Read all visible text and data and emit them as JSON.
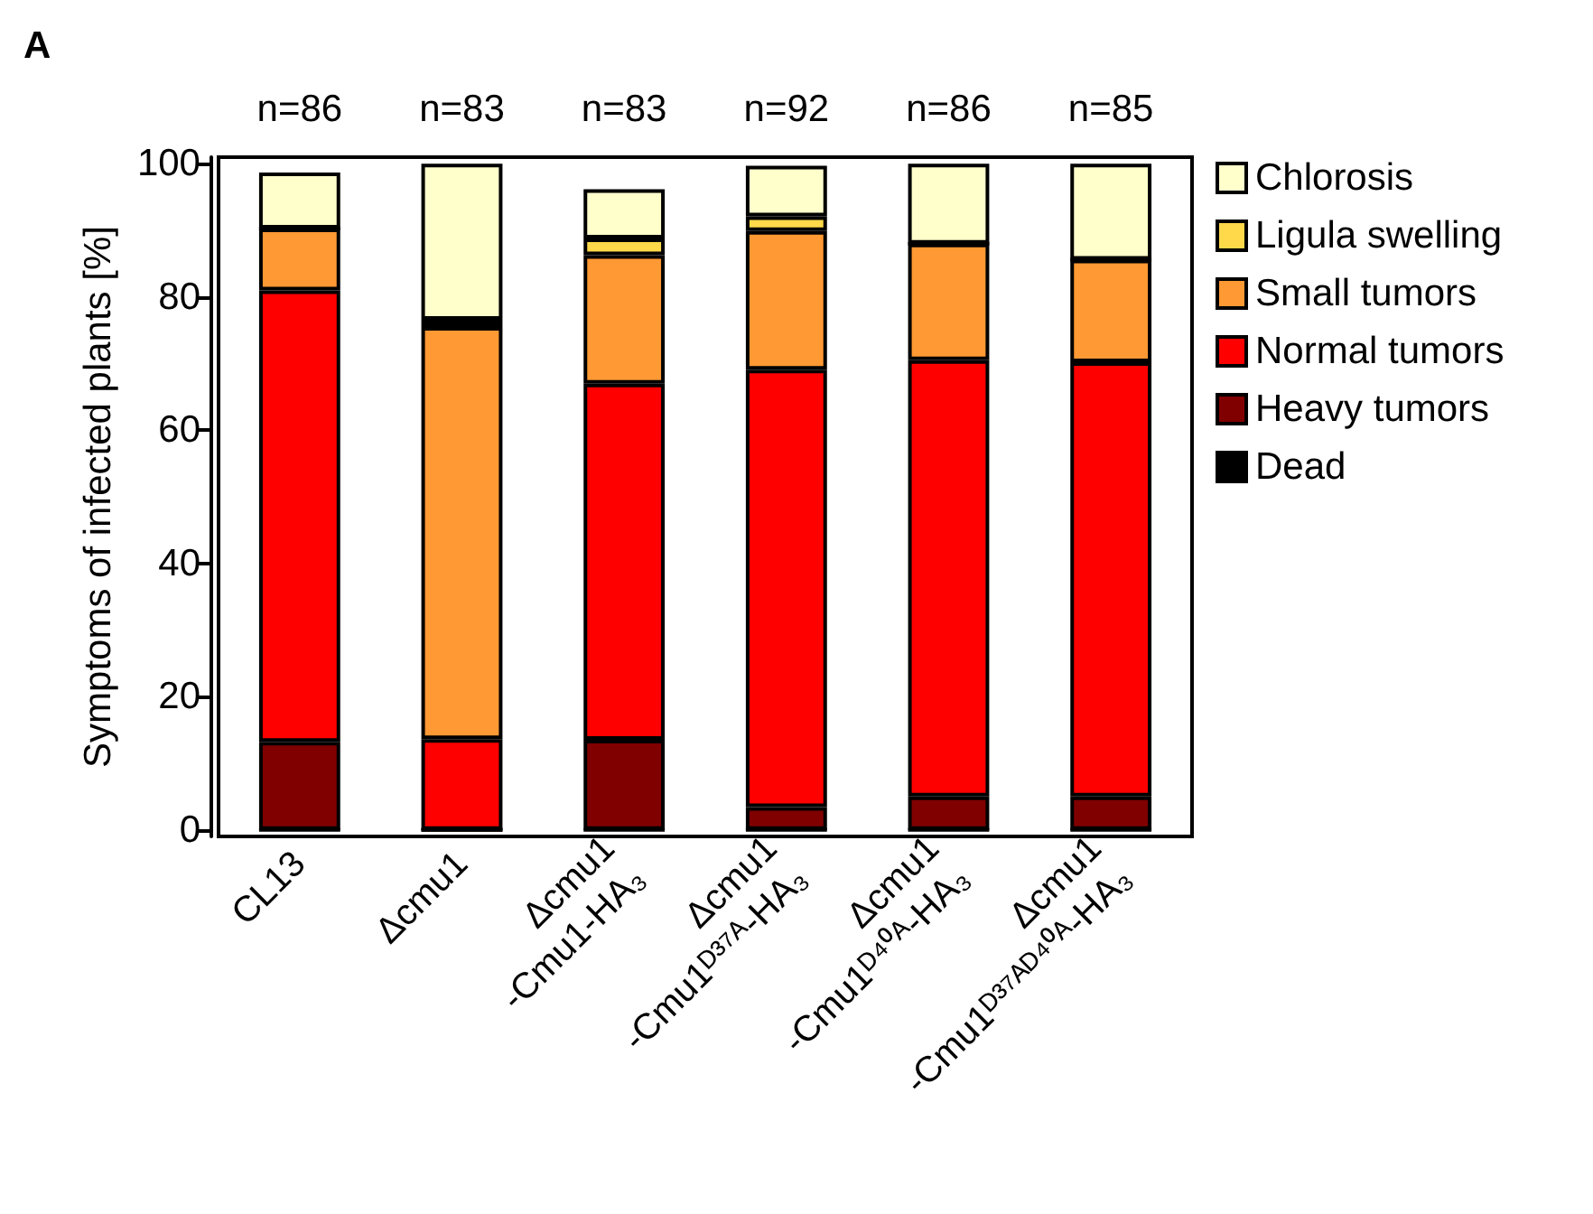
{
  "chart_data": {
    "type": "bar",
    "title": "A",
    "ylabel": "Symptoms of infected plants [%]",
    "categories": [
      "CL13",
      "Δcmu1",
      "Δcmu1\n-Cmu1-HA₃",
      "Δcmu1\n-Cmu1ᴰ³⁷ᴬ-HA₃",
      "Δcmu1\n-Cmu1ᴰ⁴⁰ᴬ-HA₃",
      "Δcmu1\n-Cmu1ᴰ³⁷ᴬᴰ⁴⁰ᴬ-HA₃"
    ],
    "stacked": true,
    "series": [
      {
        "name": "Dead",
        "color": "#000000",
        "values": [
          0,
          0,
          0,
          0,
          0,
          0
        ]
      },
      {
        "name": "Heavy tumors",
        "color": "#800000",
        "values": [
          13.2,
          0,
          13.5,
          3.4,
          5.0,
          5.0
        ]
      },
      {
        "name": "Normal tumors",
        "color": "#ff0000",
        "values": [
          67.8,
          13.6,
          53.5,
          65.7,
          65.5,
          65.2
        ]
      },
      {
        "name": "Small tumors",
        "color": "#ff9933",
        "values": [
          9.3,
          61.9,
          19.3,
          20.8,
          17.5,
          15.4
        ]
      },
      {
        "name": "Ligula swelling",
        "color": "#ffd94a",
        "values": [
          0,
          1.1,
          2.5,
          2.2,
          0,
          0
        ]
      },
      {
        "name": "Chlorosis",
        "color": "#ffffcc",
        "values": [
          8.4,
          23.4,
          7.4,
          7.6,
          12.0,
          14.4
        ]
      }
    ],
    "annotations": [
      "n=86",
      "n=83",
      "n=83",
      "n=92",
      "n=86",
      "n=85"
    ],
    "ylim": [
      -1,
      101
    ],
    "yticks": [
      0,
      20,
      40,
      60,
      80,
      100
    ],
    "legend": "top right",
    "grid": false
  }
}
